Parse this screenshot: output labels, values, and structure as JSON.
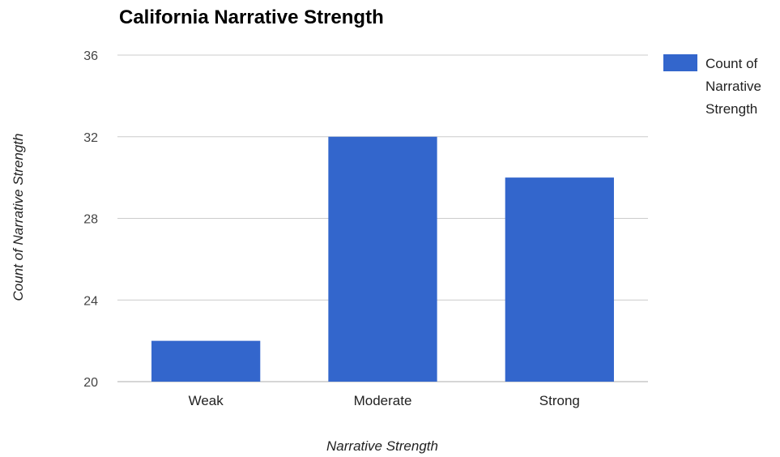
{
  "chart_data": {
    "type": "bar",
    "title": "California Narrative Strength",
    "xlabel": "Narrative Strength",
    "ylabel": "Count of Narrative Strength",
    "categories": [
      "Weak",
      "Moderate",
      "Strong"
    ],
    "series": [
      {
        "name": "Count of Narrative Strength",
        "values": [
          22,
          32,
          30
        ],
        "color": "#3366cc"
      }
    ],
    "ylim": [
      20,
      36
    ],
    "yticks": [
      "20",
      "24",
      "28",
      "32",
      "36"
    ],
    "grid": true,
    "legend_position": "right",
    "legend_lines": [
      "Count of",
      "Narrative",
      "Strength"
    ]
  }
}
